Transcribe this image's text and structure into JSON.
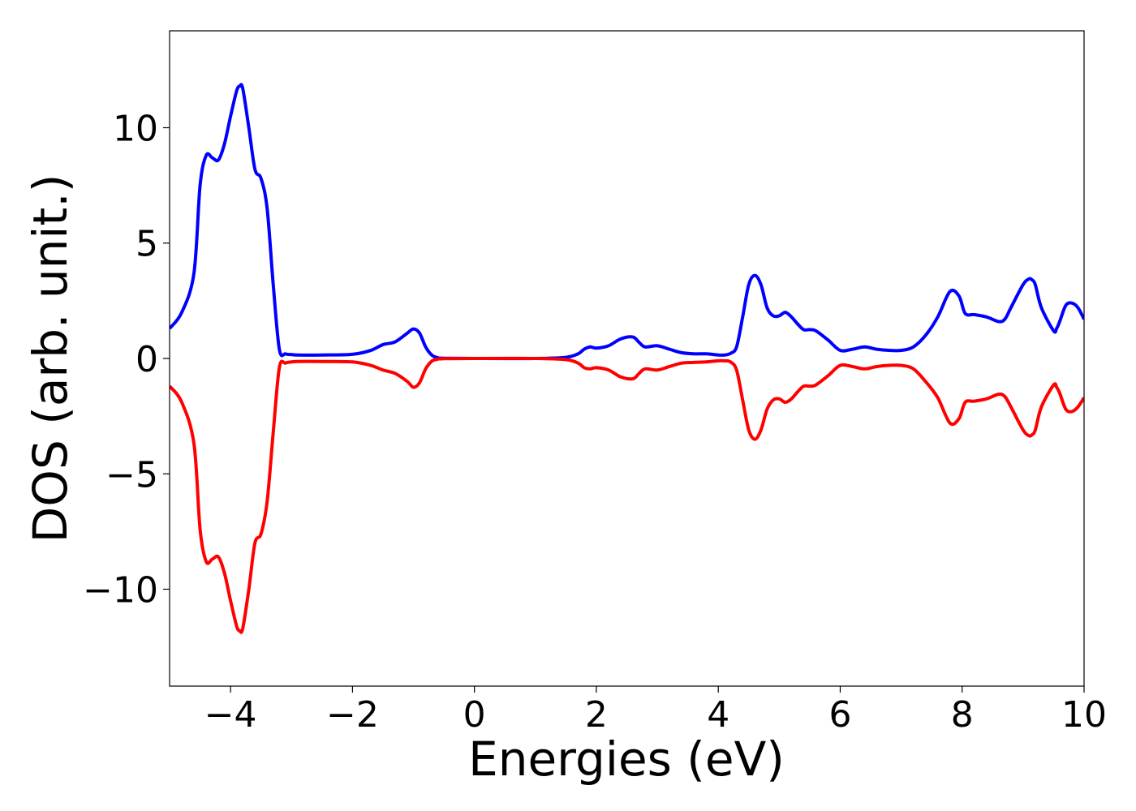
{
  "chart_data": {
    "type": "line",
    "title": "",
    "xlabel": "Energies (eV)",
    "ylabel": "DOS (arb. unit.)",
    "xlim": [
      -5,
      10
    ],
    "ylim": [
      -14.2,
      14.2
    ],
    "xticks": [
      -4,
      -2,
      0,
      2,
      4,
      6,
      8,
      10
    ],
    "yticks": [
      -10,
      -5,
      0,
      5,
      10
    ],
    "xtick_labels": [
      "−4",
      "−2",
      "0",
      "2",
      "4",
      "6",
      "8",
      "10"
    ],
    "ytick_labels": [
      "−10",
      "−5",
      "0",
      "5",
      "10"
    ],
    "grid": false,
    "legend": "none",
    "series": [
      {
        "color": "#0000ff",
        "x": [
          -5.0,
          -4.8,
          -4.6,
          -4.5,
          -4.4,
          -4.3,
          -4.2,
          -4.1,
          -4.0,
          -3.9,
          -3.85,
          -3.8,
          -3.7,
          -3.6,
          -3.5,
          -3.4,
          -3.3,
          -3.2,
          -3.1,
          -3.0,
          -2.9,
          -2.5,
          -2.0,
          -1.7,
          -1.5,
          -1.3,
          -1.1,
          -1.0,
          -0.9,
          -0.8,
          -0.7,
          -0.6,
          -0.5,
          0.0,
          1.0,
          1.5,
          1.7,
          1.8,
          1.9,
          2.0,
          2.2,
          2.4,
          2.6,
          2.7,
          2.8,
          3.0,
          3.2,
          3.4,
          3.6,
          3.8,
          4.0,
          4.1,
          4.2,
          4.3,
          4.4,
          4.5,
          4.6,
          4.7,
          4.8,
          4.9,
          5.0,
          5.1,
          5.2,
          5.3,
          5.4,
          5.5,
          5.6,
          5.8,
          6.0,
          6.2,
          6.4,
          6.6,
          6.8,
          7.0,
          7.2,
          7.4,
          7.6,
          7.8,
          7.95,
          8.05,
          8.2,
          8.4,
          8.6,
          8.7,
          8.8,
          9.0,
          9.1,
          9.15,
          9.2,
          9.3,
          9.5,
          9.55,
          9.6,
          9.7,
          9.8,
          9.9,
          10.0
        ],
        "y": [
          1.3,
          2.0,
          3.7,
          7.5,
          8.8,
          8.7,
          8.6,
          9.3,
          10.5,
          11.6,
          11.8,
          11.7,
          10.0,
          8.2,
          7.8,
          6.5,
          3.2,
          0.4,
          0.2,
          0.17,
          0.15,
          0.15,
          0.18,
          0.35,
          0.6,
          0.72,
          1.1,
          1.28,
          1.1,
          0.5,
          0.15,
          0.03,
          0.01,
          0.0,
          0.0,
          0.05,
          0.2,
          0.4,
          0.5,
          0.45,
          0.55,
          0.85,
          0.93,
          0.7,
          0.5,
          0.55,
          0.4,
          0.25,
          0.2,
          0.2,
          0.15,
          0.15,
          0.22,
          0.5,
          1.8,
          3.2,
          3.6,
          3.2,
          2.2,
          1.85,
          1.85,
          2.0,
          1.8,
          1.5,
          1.25,
          1.25,
          1.2,
          0.8,
          0.35,
          0.4,
          0.5,
          0.4,
          0.35,
          0.35,
          0.5,
          1.0,
          1.8,
          2.9,
          2.7,
          1.95,
          1.9,
          1.8,
          1.6,
          1.7,
          2.2,
          3.2,
          3.45,
          3.4,
          3.2,
          2.2,
          1.2,
          1.3,
          1.6,
          2.3,
          2.4,
          2.2,
          1.7
        ]
      },
      {
        "color": "#ff0000",
        "x": [
          -5.0,
          -4.8,
          -4.6,
          -4.5,
          -4.4,
          -4.3,
          -4.2,
          -4.1,
          -4.0,
          -3.9,
          -3.85,
          -3.8,
          -3.7,
          -3.6,
          -3.5,
          -3.4,
          -3.3,
          -3.2,
          -3.1,
          -3.0,
          -2.9,
          -2.5,
          -2.0,
          -1.7,
          -1.5,
          -1.3,
          -1.1,
          -1.0,
          -0.9,
          -0.8,
          -0.7,
          -0.6,
          -0.5,
          0.0,
          1.0,
          1.5,
          1.7,
          1.8,
          1.9,
          2.0,
          2.2,
          2.4,
          2.6,
          2.7,
          2.8,
          3.0,
          3.2,
          3.4,
          3.6,
          3.8,
          4.0,
          4.1,
          4.2,
          4.3,
          4.4,
          4.5,
          4.6,
          4.7,
          4.8,
          4.9,
          5.0,
          5.1,
          5.2,
          5.3,
          5.4,
          5.5,
          5.6,
          5.8,
          6.0,
          6.2,
          6.4,
          6.6,
          6.8,
          7.0,
          7.2,
          7.4,
          7.6,
          7.8,
          7.95,
          8.05,
          8.2,
          8.4,
          8.6,
          8.7,
          8.8,
          9.0,
          9.1,
          9.15,
          9.2,
          9.3,
          9.5,
          9.55,
          9.6,
          9.7,
          9.8,
          9.9,
          10.0
        ],
        "y": [
          -1.2,
          -1.9,
          -3.7,
          -7.4,
          -8.8,
          -8.7,
          -8.6,
          -9.3,
          -10.5,
          -11.6,
          -11.8,
          -11.7,
          -10.0,
          -8.0,
          -7.6,
          -6.2,
          -3.2,
          -0.4,
          -0.2,
          -0.15,
          -0.13,
          -0.13,
          -0.15,
          -0.3,
          -0.5,
          -0.65,
          -1.0,
          -1.25,
          -1.05,
          -0.45,
          -0.12,
          -0.03,
          -0.01,
          0.0,
          0.0,
          -0.05,
          -0.2,
          -0.4,
          -0.45,
          -0.4,
          -0.5,
          -0.8,
          -0.88,
          -0.65,
          -0.45,
          -0.5,
          -0.35,
          -0.2,
          -0.17,
          -0.15,
          -0.1,
          -0.1,
          -0.15,
          -0.5,
          -1.8,
          -3.1,
          -3.5,
          -3.1,
          -2.2,
          -1.8,
          -1.75,
          -1.9,
          -1.75,
          -1.45,
          -1.2,
          -1.2,
          -1.15,
          -0.75,
          -0.3,
          -0.35,
          -0.45,
          -0.35,
          -0.3,
          -0.3,
          -0.45,
          -1.0,
          -1.7,
          -2.8,
          -2.6,
          -1.9,
          -1.85,
          -1.75,
          -1.55,
          -1.65,
          -2.1,
          -3.1,
          -3.35,
          -3.3,
          -3.1,
          -2.1,
          -1.15,
          -1.25,
          -1.5,
          -2.2,
          -2.3,
          -2.1,
          -1.7
        ]
      }
    ]
  }
}
